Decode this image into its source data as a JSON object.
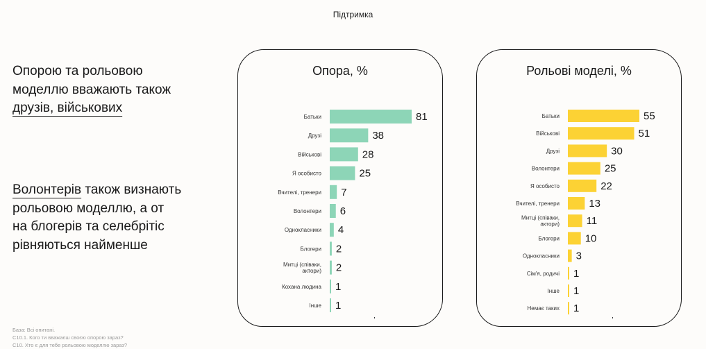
{
  "page": {
    "section": "Підтримка",
    "headline1": {
      "line1": "Опорою та рольовою",
      "line2": "моделлю вважають також",
      "line3": "друзів, військових"
    },
    "headline2": {
      "highlight": "Волонтерів",
      "rest1": " також визнають",
      "line2": "рольовою моделлю, а от",
      "line3": "на блогерів та селебрітіс",
      "line4": "рівняються найменше"
    },
    "footnotes": [
      "База: Всі опитані.",
      "С10.1. Кого ти вважаєш своєю опорою зараз?",
      "С10. Хто є для тебе рольовою моделлю зараз?"
    ]
  },
  "chart_data": [
    {
      "type": "bar",
      "orientation": "horizontal",
      "title": "Опора, %",
      "color": "#8dd5b7",
      "xlim": [
        0,
        81
      ],
      "categories": [
        "Батьки",
        "Друзі",
        "Військові",
        "Я особисто",
        "Вчителі, тренери",
        "Волонтери",
        "Однокласники",
        "Блогери",
        "Митці (співаки, актори)",
        "Кохана людина",
        "Інше"
      ],
      "values": [
        81,
        38,
        28,
        25,
        7,
        6,
        4,
        2,
        2,
        1,
        1
      ]
    },
    {
      "type": "bar",
      "orientation": "horizontal",
      "title": "Рольові моделі, %",
      "color": "#fcd234",
      "xlim": [
        0,
        55
      ],
      "categories": [
        "Батьки",
        "Військові",
        "Друзі",
        "Волонтери",
        "Я особисто",
        "Вчителі, тренери",
        "Митці (співаки, актори)",
        "Блогери",
        "Однокласники",
        "Сім'я, родичі",
        "Інше",
        "Немає таких"
      ],
      "values": [
        55,
        51,
        30,
        25,
        22,
        13,
        11,
        10,
        3,
        1,
        1,
        1
      ]
    }
  ]
}
